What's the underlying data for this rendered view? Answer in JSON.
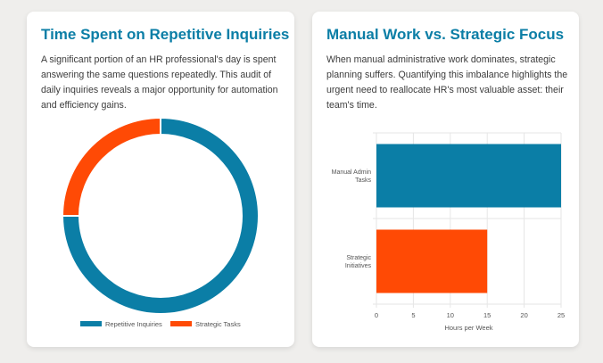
{
  "cards": [
    {
      "title": "Time Spent on Repetitive Inquiries",
      "description": "A significant portion of an HR professional's day is spent answering the same questions repeatedly. This audit of daily inquiries reveals a major opportunity for automation and efficiency gains."
    },
    {
      "title": "Manual Work vs. Strategic Focus",
      "description": "When manual administrative work dominates, strategic planning suffers. Quantifying this imbalance highlights the urgent need to reallocate HR's most valuable asset: their team's time."
    }
  ],
  "chart_data": [
    {
      "type": "pie",
      "variant": "doughnut",
      "labels": [
        "Repetitive Inquiries",
        "Strategic Tasks"
      ],
      "values": [
        75,
        25
      ],
      "colors": [
        "#0b7ea6",
        "#ff4a05"
      ],
      "legend": "bottom"
    },
    {
      "type": "bar",
      "orientation": "horizontal",
      "categories": [
        [
          "Manual Admin",
          "Tasks"
        ],
        [
          "Strategic",
          "Initiatives"
        ]
      ],
      "values": [
        25,
        15
      ],
      "colors": [
        "#0b7ea6",
        "#ff4a05"
      ],
      "xlabel": "Hours per Week",
      "xlim": [
        0,
        25
      ],
      "xticks": [
        0,
        5,
        10,
        15,
        20,
        25
      ],
      "grid": true
    }
  ]
}
